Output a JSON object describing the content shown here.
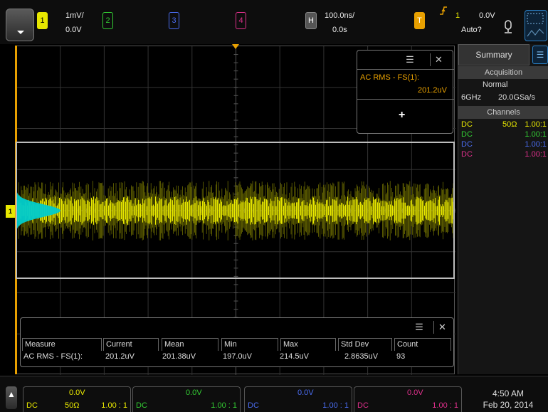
{
  "colors": {
    "ch1": "#e8e800",
    "ch2": "#33cc33",
    "ch3": "#4a6cf0",
    "ch4": "#e0308c",
    "trigger": "#e8a000",
    "histogram": "#00cccc"
  },
  "topbar": {
    "ch1": {
      "num": "1",
      "scale": "1mV/",
      "offset": "0.0V"
    },
    "ch2": {
      "num": "2"
    },
    "ch3": {
      "num": "3"
    },
    "ch4": {
      "num": "4"
    },
    "horizontal": {
      "label": "H",
      "scale": "100.0ns/",
      "delay": "0.0s"
    },
    "trigger": {
      "label": "T",
      "source": "1",
      "level": "0.0V",
      "mode": "Auto?"
    },
    "icons": [
      "menu-icon",
      "trigger-edge-icon",
      "probe-icon",
      "zoom-icon"
    ]
  },
  "measure_box": {
    "label": "AC RMS - FS(1):",
    "value": "201.2uV",
    "add": "+",
    "close": "✕",
    "menu": "☰"
  },
  "meas_table": {
    "headers": [
      "Measure",
      "Current",
      "Mean",
      "Min",
      "Max",
      "Std Dev",
      "Count"
    ],
    "row": [
      "AC RMS - FS(1):",
      "201.2uV",
      "201.38uV",
      "197.0uV",
      "214.5uV",
      "2.8635uV",
      "93"
    ],
    "close": "✕",
    "menu": "☰"
  },
  "sidebar": {
    "tab": "Summary",
    "acquisition": {
      "title": "Acquisition",
      "mode": "Normal",
      "bw": "6GHz",
      "rate": "20.0GSa/s"
    },
    "channels": {
      "title": "Channels",
      "rows": [
        {
          "coupling": "DC",
          "imp": "50Ω",
          "ratio": "1.00:1"
        },
        {
          "coupling": "DC",
          "imp": "",
          "ratio": "1.00:1"
        },
        {
          "coupling": "DC",
          "imp": "",
          "ratio": "1.00:1"
        },
        {
          "coupling": "DC",
          "imp": "",
          "ratio": "1.00:1"
        }
      ]
    }
  },
  "bottombar": {
    "channels": [
      {
        "offset": "0.0V",
        "coupling": "DC",
        "imp": "50Ω",
        "ratio": "1.00 : 1"
      },
      {
        "offset": "0.0V",
        "coupling": "DC",
        "imp": "",
        "ratio": "1.00 : 1"
      },
      {
        "offset": "0.0V",
        "coupling": "DC",
        "imp": "",
        "ratio": "1.00 : 1"
      },
      {
        "offset": "0.0V",
        "coupling": "DC",
        "imp": "",
        "ratio": "1.00 : 1"
      }
    ],
    "time": "4:50 AM",
    "date": "Feb 20, 2014"
  }
}
